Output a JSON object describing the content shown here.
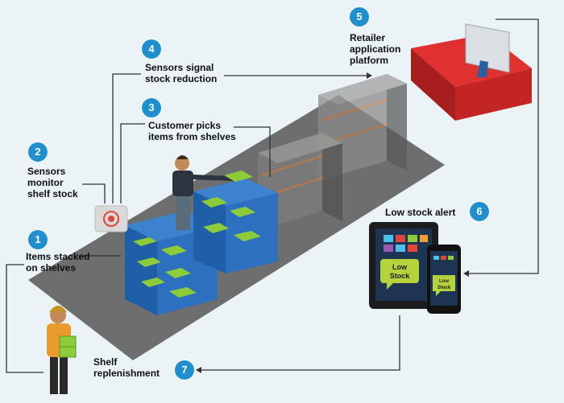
{
  "steps": [
    {
      "number": "1",
      "text": "Items stacked\non shelves"
    },
    {
      "number": "2",
      "text": "Sensors\nmonitor\nshelf stock"
    },
    {
      "number": "3",
      "text": "Customer picks\nitems from shelves"
    },
    {
      "number": "4",
      "text": "Sensors signal\nstock reduction"
    },
    {
      "number": "5",
      "text": "Retailer\napplication\nplatform"
    },
    {
      "number": "6",
      "text": "Low stock alert"
    },
    {
      "number": "7",
      "text": "Shelf\nreplenishment"
    }
  ],
  "devices": {
    "tablet_bubble": "Low\nStock",
    "phone_bubble": "Low\nStock"
  },
  "colors": {
    "badge": "#1f8fcf",
    "floor": "#6b6b6b",
    "shelf": "#2f6db5",
    "item": "#8ccc3a",
    "counter": "#d32a2a",
    "alert_bubble": "#b5d33a"
  }
}
